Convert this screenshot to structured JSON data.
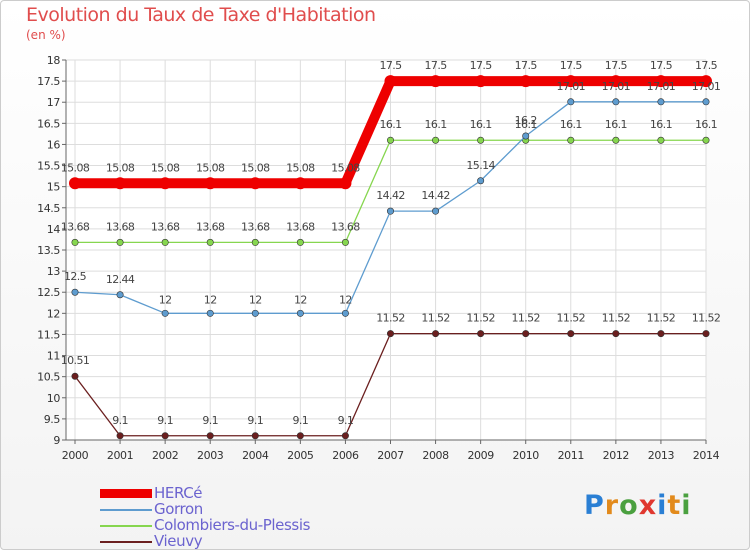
{
  "title": "Evolution du Taux de Taxe d'Habitation",
  "subtitle": "(en %)",
  "logo": {
    "text": "Proxiti",
    "letters": [
      "P",
      "r",
      "o",
      "x",
      "i",
      "t",
      "i"
    ],
    "colors": [
      "#2a7fd4",
      "#e28a1b",
      "#4aa03f",
      "#e0372f",
      "#2a7fd4",
      "#e28a1b",
      "#4aa03f"
    ]
  },
  "chart_data": {
    "type": "line",
    "title": "Evolution du Taux de Taxe d'Habitation",
    "ylabel": "(en %)",
    "xlabel": "",
    "ylim": [
      9,
      18
    ],
    "yticks": [
      "9",
      "9.5",
      "10",
      "10.5",
      "11",
      "11.5",
      "12",
      "12.5",
      "13",
      "13.5",
      "14",
      "14.5",
      "15",
      "15.5",
      "16",
      "16.5",
      "17",
      "17.5",
      "18"
    ],
    "categories": [
      "2000",
      "2001",
      "2002",
      "2003",
      "2004",
      "2005",
      "2006",
      "2007",
      "2008",
      "2009",
      "2010",
      "2011",
      "2012",
      "2013",
      "2014"
    ],
    "series": [
      {
        "name": "HERCé",
        "color": "#ee0000",
        "values": [
          15.08,
          15.08,
          15.08,
          15.08,
          15.08,
          15.08,
          15.08,
          17.5,
          17.5,
          17.5,
          17.5,
          17.5,
          17.5,
          17.5,
          17.5
        ],
        "labels": [
          "15.08",
          "15.08",
          "15.08",
          "15.08",
          "15.08",
          "15.08",
          "15.08",
          "17.5",
          "17.5",
          "17.5",
          "17.5",
          "17.5",
          "17.5",
          "17.5",
          "17.5"
        ]
      },
      {
        "name": "Gorron",
        "color": "#5e9ccf",
        "values": [
          12.5,
          12.44,
          12,
          12,
          12,
          12,
          12,
          14.42,
          14.42,
          15.14,
          16.2,
          17.01,
          17.01,
          17.01,
          17.01
        ],
        "labels": [
          "12.5",
          "12.44",
          "12",
          "12",
          "12",
          "12",
          "12",
          "14.42",
          "14.42",
          "15.14",
          "16.2",
          "17.01",
          "17.01",
          "17.01",
          "17.01"
        ]
      },
      {
        "name": "Colombiers-du-Plessis",
        "color": "#86d64f",
        "values": [
          13.68,
          13.68,
          13.68,
          13.68,
          13.68,
          13.68,
          13.68,
          16.1,
          16.1,
          16.1,
          16.1,
          16.1,
          16.1,
          16.1,
          16.1
        ],
        "labels": [
          "13.68",
          "13.68",
          "13.68",
          "13.68",
          "13.68",
          "13.68",
          "13.68",
          "16.1",
          "16.1",
          "16.1",
          "16.1",
          "16.1",
          "16.1",
          "16.1",
          "16.1"
        ]
      },
      {
        "name": "Vieuvy",
        "color": "#6b1f1f",
        "values": [
          10.51,
          9.1,
          9.1,
          9.1,
          9.1,
          9.1,
          9.1,
          11.52,
          11.52,
          11.52,
          11.52,
          11.52,
          11.52,
          11.52,
          11.52
        ],
        "labels": [
          "10.51",
          "9.1",
          "9.1",
          "9.1",
          "9.1",
          "9.1",
          "9.1",
          "11.52",
          "11.52",
          "11.52",
          "11.52",
          "11.52",
          "11.52",
          "11.52",
          "11.52"
        ]
      }
    ],
    "legend": "bottom-left",
    "grid": true
  }
}
